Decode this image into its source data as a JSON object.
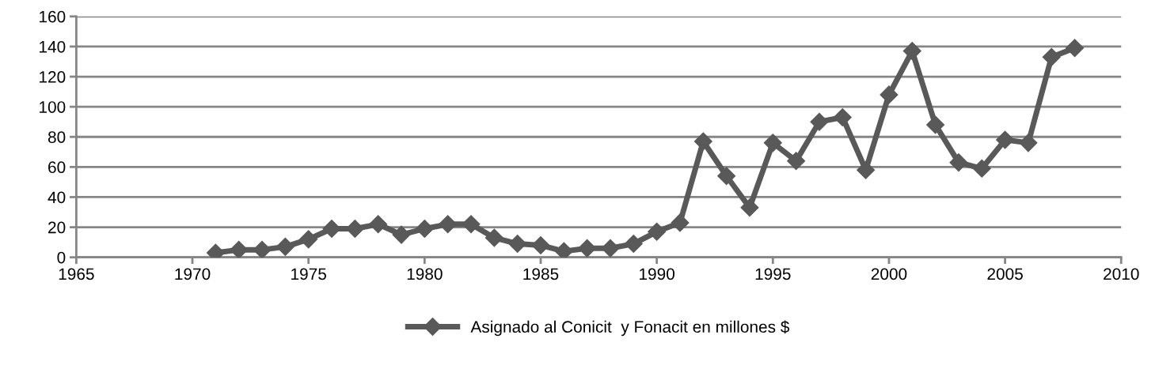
{
  "chart_data": {
    "type": "line",
    "x": [
      1971,
      1972,
      1973,
      1974,
      1975,
      1976,
      1977,
      1978,
      1979,
      1980,
      1981,
      1982,
      1983,
      1984,
      1985,
      1986,
      1987,
      1988,
      1989,
      1990,
      1991,
      1992,
      1993,
      1994,
      1995,
      1996,
      1997,
      1998,
      1999,
      2000,
      2001,
      2002,
      2003,
      2004,
      2005,
      2006,
      2007,
      2008
    ],
    "series": [
      {
        "name": "Asignado al Conicit  y Fonacit en millones $",
        "color": "#595959",
        "values": [
          3,
          5,
          5,
          7,
          12,
          19,
          19,
          22,
          15,
          19,
          22,
          22,
          13,
          9,
          8,
          4,
          6,
          6,
          9,
          17,
          23,
          77,
          54,
          33,
          76,
          64,
          90,
          93,
          58,
          108,
          137,
          88,
          63,
          59,
          78,
          76,
          133,
          139
        ]
      }
    ],
    "xlim": [
      1965,
      2010
    ],
    "xticks": [
      1965,
      1970,
      1975,
      1980,
      1985,
      1990,
      1995,
      2000,
      2005,
      2010
    ],
    "ylim": [
      0,
      160
    ],
    "yticks": [
      0,
      20,
      40,
      60,
      80,
      100,
      120,
      140,
      160
    ],
    "grid": "y",
    "legend": "bottom",
    "marker": "diamond",
    "line_style": "solid"
  }
}
